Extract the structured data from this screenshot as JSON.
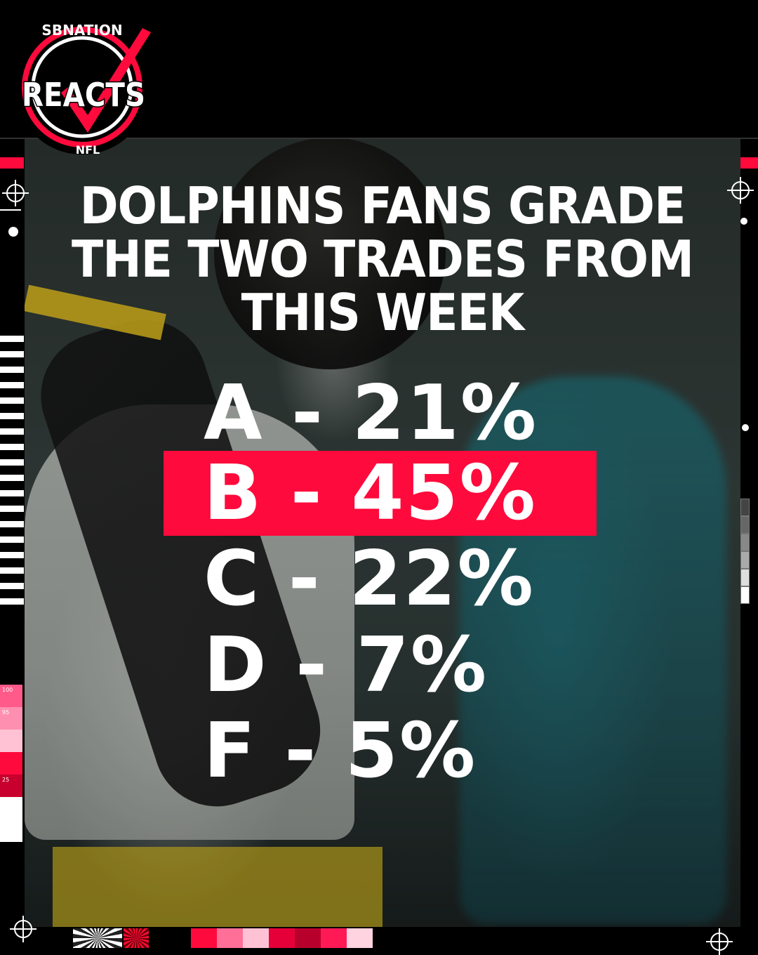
{
  "logo": {
    "top_text": "SBNATION",
    "main_text": "REACTS",
    "bottom_text": "NFL",
    "colors": {
      "red": "#ff0a3c",
      "white": "#ffffff",
      "black": "#000000"
    }
  },
  "headline": "DOLPHINS FANS GRADE THE TWO TRADES FROM THIS WEEK",
  "grades": [
    {
      "label": "A - 21%",
      "highlighted": false
    },
    {
      "label": "B - 45%",
      "highlighted": true
    },
    {
      "label": "C - 22%",
      "highlighted": false
    },
    {
      "label": "D - 7%",
      "highlighted": false
    },
    {
      "label": "F - 5%",
      "highlighted": false
    }
  ],
  "scale_labels": [
    "100",
    "95",
    "",
    "",
    "25"
  ],
  "accent_color": "#ff0a3c"
}
